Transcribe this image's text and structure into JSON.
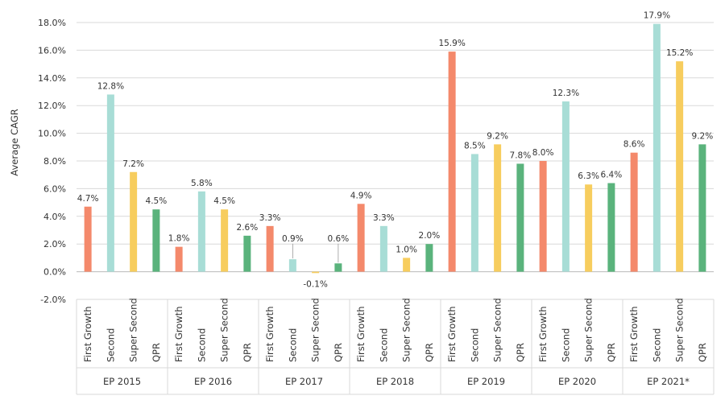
{
  "chart_data": {
    "type": "bar",
    "ylabel": "Average CAGR",
    "xlabel": "",
    "ylim": [
      -2.0,
      18.0
    ],
    "yticks": [
      -2.0,
      0.0,
      2.0,
      4.0,
      6.0,
      8.0,
      10.0,
      12.0,
      14.0,
      16.0,
      18.0
    ],
    "ytick_labels": [
      "-2.0%",
      "0.0%",
      "2.0%",
      "4.0%",
      "6.0%",
      "8.0%",
      "10.0%",
      "12.0%",
      "14.0%",
      "16.0%",
      "18.0%"
    ],
    "grid": true,
    "legend": "none",
    "categories": [
      "First Growth",
      "Second",
      "Super Second",
      "QPR"
    ],
    "category_colors": [
      "#f4896b",
      "#a8ddd6",
      "#f7cd5e",
      "#5ab37c"
    ],
    "groups": [
      {
        "label": "EP 2015",
        "values": [
          4.7,
          12.8,
          7.2,
          4.5
        ],
        "labels": [
          "4.7%",
          "12.8%",
          "7.2%",
          "4.5%"
        ]
      },
      {
        "label": "EP 2016",
        "values": [
          1.8,
          5.8,
          4.5,
          2.6
        ],
        "labels": [
          "1.8%",
          "5.8%",
          "4.5%",
          "2.6%"
        ]
      },
      {
        "label": "EP 2017",
        "values": [
          3.3,
          0.9,
          -0.1,
          0.6
        ],
        "labels": [
          "3.3%",
          "0.9%",
          "-0.1%",
          "0.6%"
        ]
      },
      {
        "label": "EP 2018",
        "values": [
          4.9,
          3.3,
          1.0,
          2.0
        ],
        "labels": [
          "4.9%",
          "3.3%",
          "1.0%",
          "2.0%"
        ]
      },
      {
        "label": "EP 2019",
        "values": [
          15.9,
          8.5,
          9.2,
          7.8
        ],
        "labels": [
          "15.9%",
          "8.5%",
          "9.2%",
          "7.8%"
        ]
      },
      {
        "label": "EP 2020",
        "values": [
          8.0,
          12.3,
          6.3,
          6.4
        ],
        "labels": [
          "8.0%",
          "12.3%",
          "6.3%",
          "6.4%"
        ]
      },
      {
        "label": "EP 2021*",
        "values": [
          8.6,
          17.9,
          15.2,
          9.2
        ],
        "labels": [
          "8.6%",
          "17.9%",
          "15.2%",
          "9.2%"
        ]
      }
    ]
  }
}
